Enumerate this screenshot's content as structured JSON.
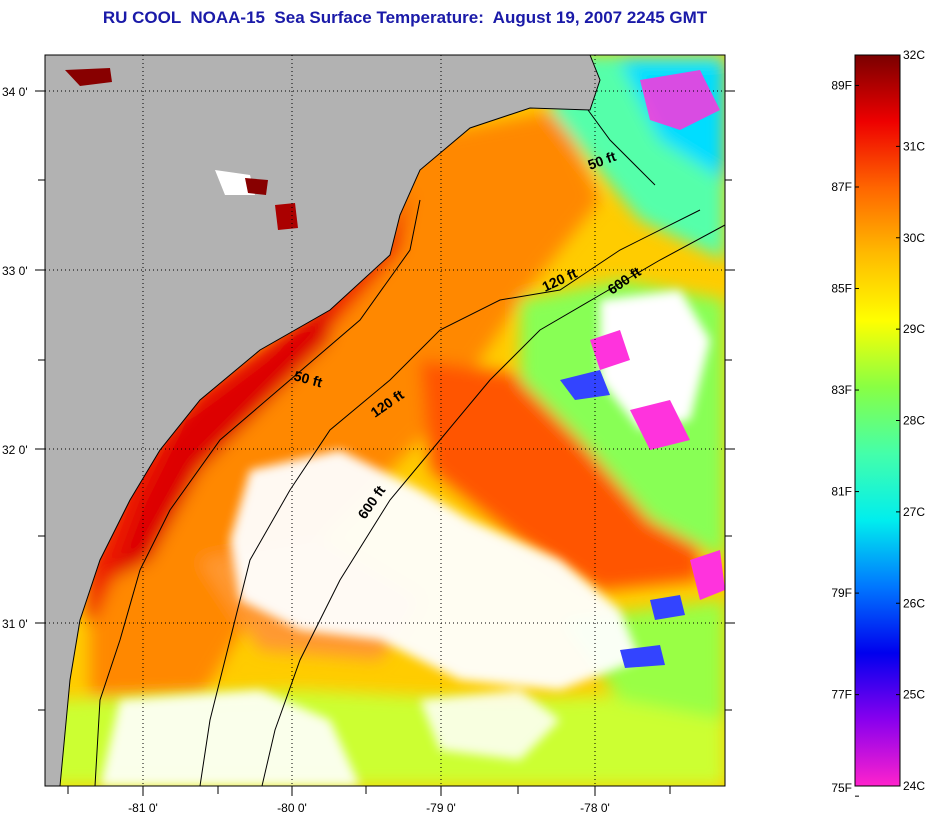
{
  "title": "RU COOL  NOAA-15  Sea Surface Temperature:  August 19, 2007 2245 GMT",
  "map": {
    "lat_labels": [
      "34 0'",
      "33 0'",
      "32 0'",
      "31 0'"
    ],
    "lon_labels": [
      "-81 0'",
      "-80 0'",
      "-79 0'",
      "-78 0'"
    ],
    "contour_labels": [
      {
        "text": "50 ft",
        "rotation": -20
      },
      {
        "text": "120 ft",
        "rotation": -25
      },
      {
        "text": "600 ft",
        "rotation": -35
      },
      {
        "text": "50 ft",
        "rotation": 15
      },
      {
        "text": "120 ft",
        "rotation": -35
      },
      {
        "text": "600 ft",
        "rotation": -55
      }
    ],
    "colors": {
      "land": "#b2b2b2",
      "cloud": "#ffffff",
      "grid": "#000000"
    }
  },
  "colorbar": {
    "celsius_labels": [
      "32C",
      "31C",
      "30C",
      "29C",
      "28C",
      "27C",
      "26C",
      "25C",
      "24C"
    ],
    "fahrenheit_labels": [
      "89F",
      "87F",
      "85F",
      "83F",
      "81F",
      "79F",
      "77F",
      "75F"
    ],
    "gradient": [
      "#ff22cc",
      "#8800ee",
      "#0000ee",
      "#0077ff",
      "#00eeee",
      "#44ffaa",
      "#88ff44",
      "#ffff00",
      "#ffbb00",
      "#ff6600",
      "#ee0000",
      "#7a0000"
    ]
  }
}
